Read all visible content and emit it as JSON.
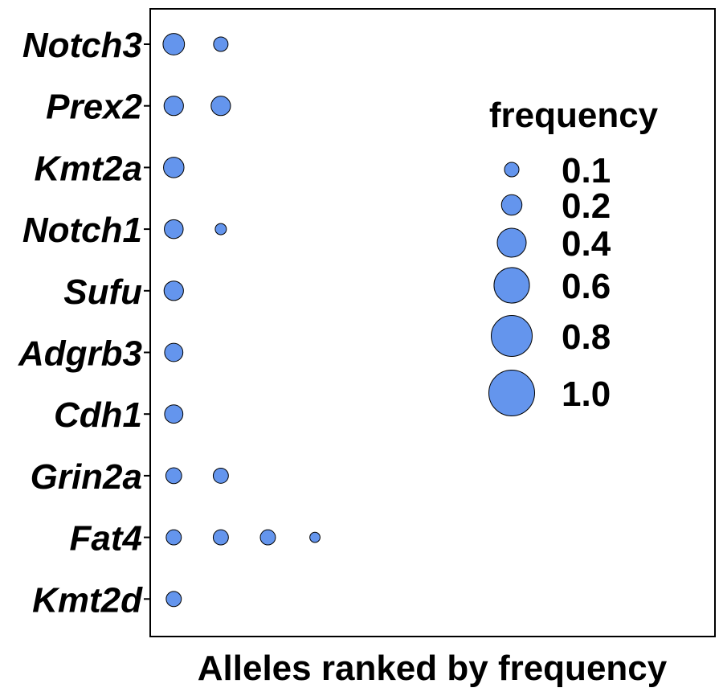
{
  "chart_data": {
    "type": "scatter",
    "xlabel": "Alleles ranked by frequency",
    "ylabel": "",
    "point_color": "#6495ED",
    "point_stroke": "#000000",
    "categories": [
      "Notch3",
      "Prex2",
      "Kmt2a",
      "Notch1",
      "Sufu",
      "Adgrb3",
      "Cdh1",
      "Grin2a",
      "Fat4",
      "Kmt2d"
    ],
    "xlim": [
      0.5,
      12.5
    ],
    "series": [
      {
        "gene": "Notch3",
        "points": [
          {
            "rank": 1,
            "frequency": 0.22
          },
          {
            "rank": 2,
            "frequency": 0.1
          }
        ]
      },
      {
        "gene": "Prex2",
        "points": [
          {
            "rank": 1,
            "frequency": 0.18
          },
          {
            "rank": 2,
            "frequency": 0.18
          }
        ]
      },
      {
        "gene": "Kmt2a",
        "points": [
          {
            "rank": 1,
            "frequency": 0.2
          }
        ]
      },
      {
        "gene": "Notch1",
        "points": [
          {
            "rank": 1,
            "frequency": 0.17
          },
          {
            "rank": 2,
            "frequency": 0.06
          }
        ]
      },
      {
        "gene": "Sufu",
        "points": [
          {
            "rank": 1,
            "frequency": 0.18
          }
        ]
      },
      {
        "gene": "Adgrb3",
        "points": [
          {
            "rank": 1,
            "frequency": 0.16
          }
        ]
      },
      {
        "gene": "Cdh1",
        "points": [
          {
            "rank": 1,
            "frequency": 0.16
          }
        ]
      },
      {
        "gene": "Grin2a",
        "points": [
          {
            "rank": 1,
            "frequency": 0.12
          },
          {
            "rank": 2,
            "frequency": 0.11
          }
        ]
      },
      {
        "gene": "Fat4",
        "points": [
          {
            "rank": 1,
            "frequency": 0.11
          },
          {
            "rank": 2,
            "frequency": 0.11
          },
          {
            "rank": 3,
            "frequency": 0.11
          },
          {
            "rank": 4,
            "frequency": 0.05
          }
        ]
      },
      {
        "gene": "Kmt2d",
        "points": [
          {
            "rank": 1,
            "frequency": 0.11
          }
        ]
      }
    ],
    "legend": {
      "title": "frequency",
      "placement": "top-right",
      "entries": [
        {
          "label": "0.1",
          "value": 0.1
        },
        {
          "label": "0.2",
          "value": 0.2
        },
        {
          "label": "0.4",
          "value": 0.4
        },
        {
          "label": "0.6",
          "value": 0.6
        },
        {
          "label": "0.8",
          "value": 0.8
        },
        {
          "label": "1.0",
          "value": 1.0
        }
      ]
    },
    "grid": false
  }
}
